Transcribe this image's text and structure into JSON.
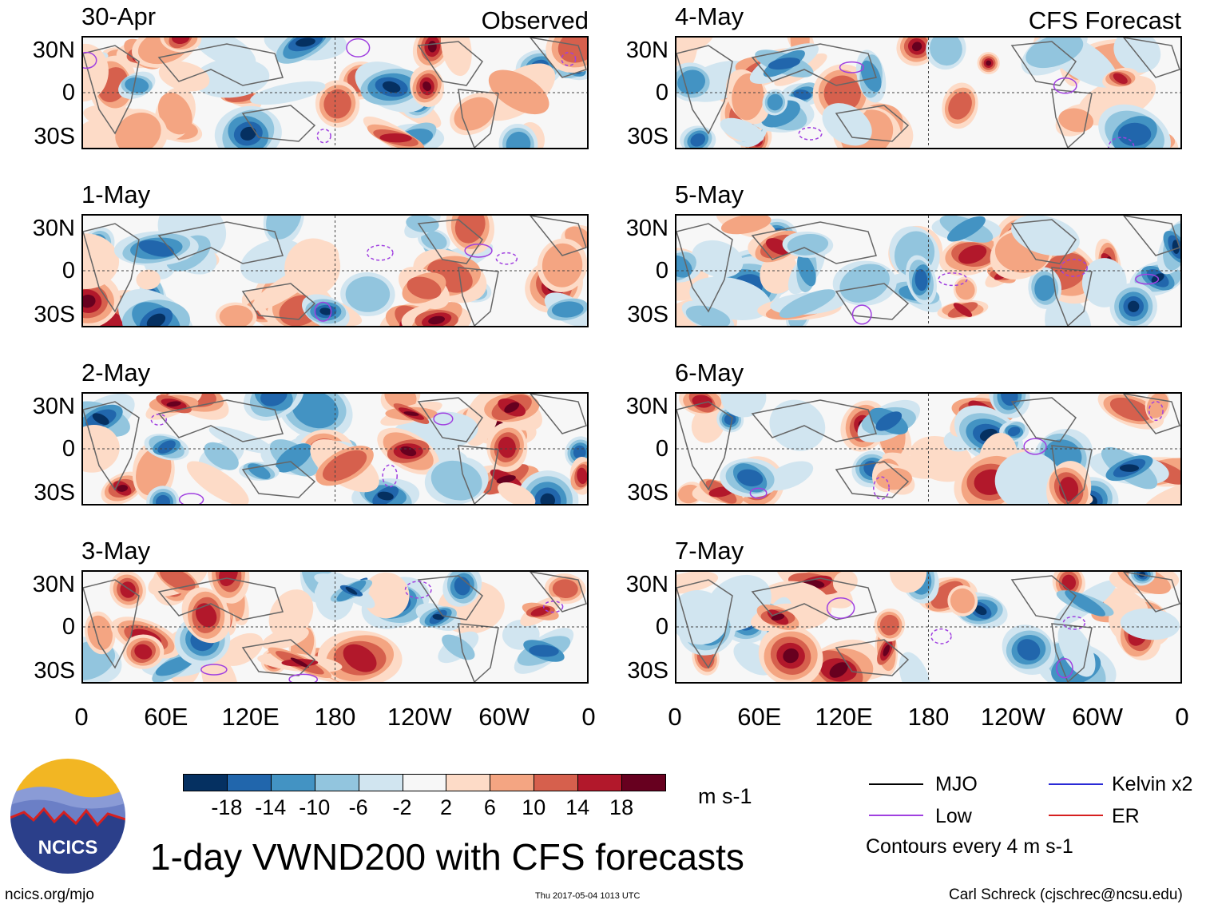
{
  "chart_data": {
    "type": "heatmap",
    "title": "1-day VWND200 with CFS forecasts",
    "variable": "VWND200",
    "units": "m s-1",
    "columns": [
      {
        "header": "Observed",
        "panels": [
          "30-Apr",
          "1-May",
          "2-May",
          "3-May"
        ]
      },
      {
        "header": "CFS Forecast",
        "panels": [
          "4-May",
          "5-May",
          "6-May",
          "7-May"
        ]
      }
    ],
    "lat_ticks": [
      "30N",
      "0",
      "30S"
    ],
    "lat_range": [
      -40,
      40
    ],
    "lon_ticks": [
      "0",
      "60E",
      "120E",
      "180",
      "120W",
      "60W",
      "0"
    ],
    "lon_range": [
      0,
      360
    ],
    "colorbar": {
      "labels": [
        "-18",
        "-14",
        "-10",
        "-6",
        "-2",
        "2",
        "6",
        "10",
        "14",
        "18"
      ],
      "colors": [
        "#053061",
        "#2166ac",
        "#4393c3",
        "#92c5de",
        "#d1e5f0",
        "#f7f7f7",
        "#fddbc7",
        "#f4a582",
        "#d6604d",
        "#b2182b",
        "#67001f"
      ]
    },
    "contour_note": "Contours every 4 m s-1",
    "legend": [
      {
        "label": "MJO",
        "color": "#000000"
      },
      {
        "label": "Kelvin x2",
        "color": "#2a2ad6"
      },
      {
        "label": "Low",
        "color": "#a040e0"
      },
      {
        "label": "ER",
        "color": "#d62020"
      }
    ]
  },
  "footer": {
    "logo_text": "NCICS",
    "url": "ncics.org/mjo",
    "timestamp": "Thu 2017-05-04 1013 UTC",
    "credit": "Carl Schreck (cjschrec@ncsu.edu)"
  }
}
